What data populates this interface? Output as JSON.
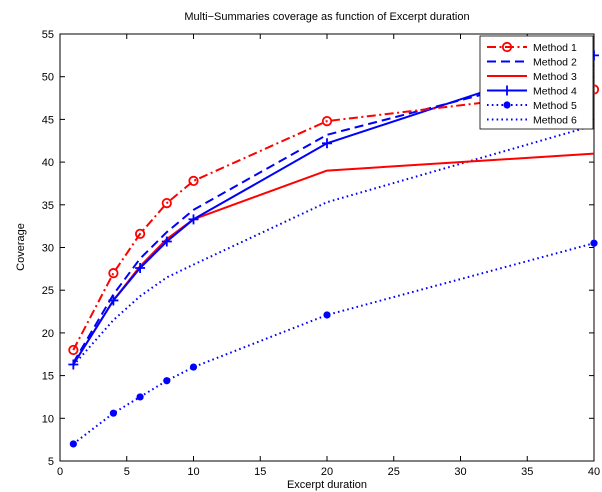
{
  "chart_data": {
    "type": "line",
    "title": "Multi−Summaries coverage as function of Excerpt duration",
    "xlabel": "Excerpt duration",
    "ylabel": "Coverage",
    "xlim": [
      0,
      40
    ],
    "ylim": [
      5,
      55
    ],
    "xticks": [
      0,
      5,
      10,
      15,
      20,
      25,
      30,
      35,
      40
    ],
    "yticks": [
      5,
      10,
      15,
      20,
      25,
      30,
      35,
      40,
      45,
      50,
      55
    ],
    "grid": false,
    "legend_position": "top-right",
    "x": [
      1,
      4,
      6,
      8,
      10,
      20,
      40
    ],
    "series": [
      {
        "name": "Method 1",
        "color": "#ff0000",
        "line_style": "dash-dot",
        "marker": "circle",
        "values": [
          18,
          27,
          31.6,
          35.2,
          37.8,
          44.8,
          48.5
        ]
      },
      {
        "name": "Method 2",
        "color": "#0000ff",
        "line_style": "dashed",
        "marker": "none",
        "values": [
          16.5,
          24.5,
          28.7,
          31.8,
          34.4,
          43.2,
          51.3
        ]
      },
      {
        "name": "Method 3",
        "color": "#ff0000",
        "line_style": "solid",
        "marker": "none",
        "values": [
          16.3,
          23.8,
          27.8,
          31,
          33.3,
          39,
          41
        ]
      },
      {
        "name": "Method 4",
        "color": "#0000ff",
        "line_style": "solid",
        "marker": "plus",
        "values": [
          16.3,
          23.8,
          27.6,
          30.7,
          33.3,
          42.2,
          52.5
        ]
      },
      {
        "name": "Method 5",
        "color": "#0000ff",
        "line_style": "dotted",
        "marker": "dot",
        "values": [
          7,
          10.6,
          12.5,
          14.4,
          16,
          22.1,
          30.5
        ]
      },
      {
        "name": "Method 6",
        "color": "#0000ff",
        "line_style": "dotted",
        "marker": "none",
        "values": [
          16.2,
          21.5,
          24.3,
          26.5,
          28,
          35.3,
          44.3
        ]
      }
    ]
  }
}
